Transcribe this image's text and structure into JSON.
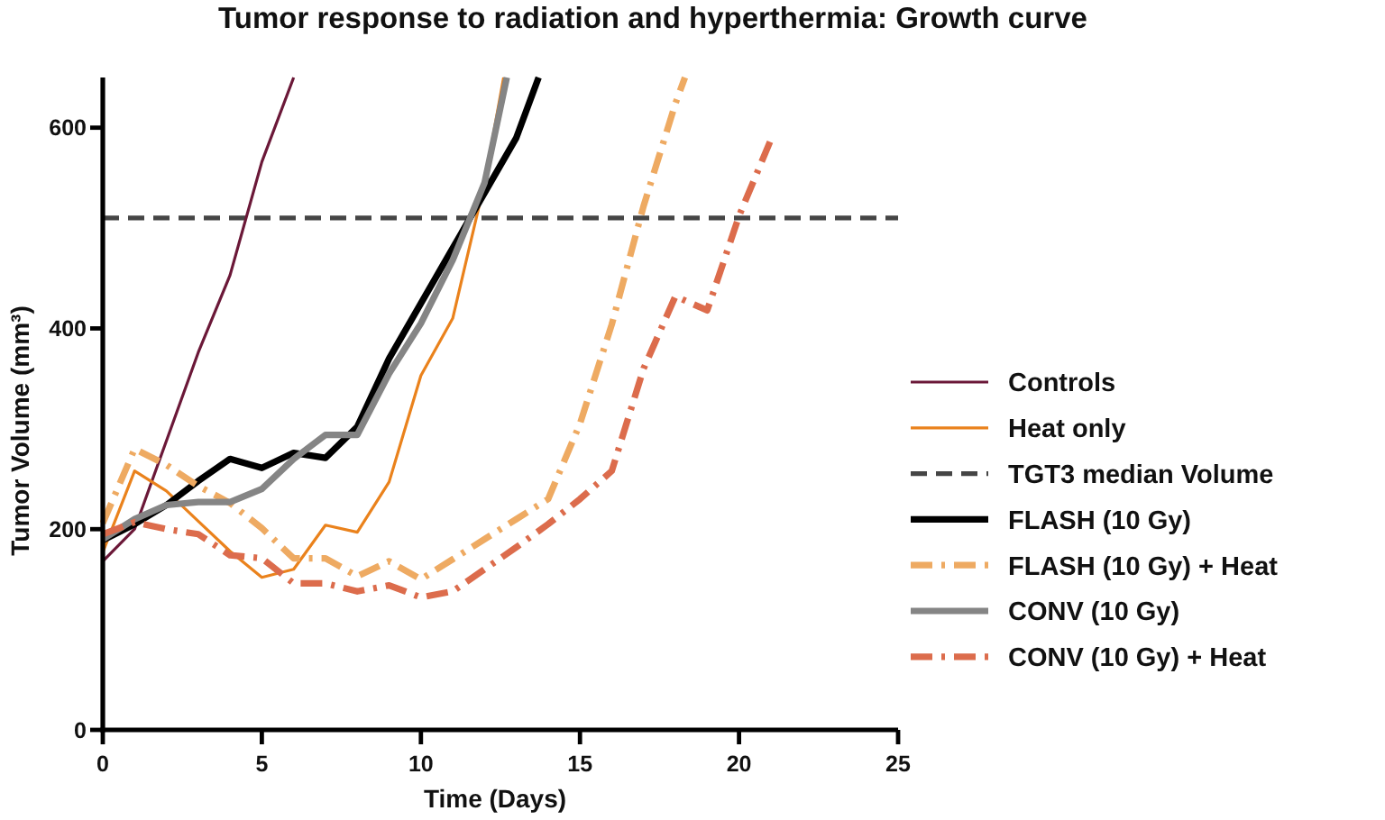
{
  "chart_data": {
    "type": "line",
    "title": "Tumor response to radiation and hyperthermia: Growth curve",
    "xlabel": "Time (Days)",
    "ylabel": "Tumor Volume (mm³)",
    "xlim": [
      0,
      25
    ],
    "xticks": [
      0,
      5,
      10,
      15,
      20,
      25
    ],
    "ylim": [
      0,
      650
    ],
    "yticks": [
      0,
      200,
      400,
      600
    ],
    "legend": "right",
    "series": [
      {
        "name": "Controls",
        "color": "#6b1838",
        "line_style": "solid",
        "x": [
          0,
          1,
          2,
          3,
          4,
          5,
          6
        ],
        "values": [
          168,
          200,
          288,
          376,
          453,
          566,
          650
        ]
      },
      {
        "name": "Heat only",
        "color": "#ea821c",
        "line_style": "solid",
        "x": [
          0,
          1,
          2,
          3,
          4,
          5,
          6,
          7,
          8,
          9,
          10,
          11,
          12,
          12.6
        ],
        "values": [
          177,
          258,
          238,
          208,
          178,
          152,
          160,
          204,
          197,
          247,
          353,
          410,
          545,
          650
        ]
      },
      {
        "name": "FLASH (10 Gy)",
        "color": "#000000",
        "line_style": "solid",
        "x": [
          0,
          1,
          2,
          3,
          4,
          5,
          6,
          7,
          8,
          9,
          10,
          11,
          12,
          13,
          13.7
        ],
        "values": [
          189,
          205,
          224,
          248,
          270,
          261,
          276,
          271,
          302,
          370,
          425,
          480,
          535,
          590,
          650
        ]
      },
      {
        "name": "FLASH (10 Gy) + Heat",
        "color": "#eeaa62",
        "line_style": "dashdot",
        "x": [
          0,
          1,
          2,
          3,
          4,
          5,
          6,
          7,
          8,
          9,
          10,
          11,
          12,
          13,
          14,
          15,
          16,
          17,
          18,
          18.3
        ],
        "values": [
          206,
          280,
          264,
          243,
          226,
          201,
          171,
          171,
          153,
          168,
          150,
          170,
          190,
          210,
          230,
          305,
          404,
          522,
          624,
          650
        ]
      },
      {
        "name": "CONV (10 Gy)",
        "color": "#858585",
        "line_style": "solid",
        "x": [
          0,
          1,
          2,
          3,
          4,
          5,
          6,
          7,
          8,
          9,
          10,
          11,
          12,
          12.7
        ],
        "values": [
          190,
          210,
          224,
          227,
          227,
          240,
          270,
          294,
          294,
          355,
          405,
          468,
          545,
          650
        ]
      },
      {
        "name": "CONV (10 Gy) + Heat",
        "color": "#dc6c4c",
        "line_style": "dashdot",
        "x": [
          0,
          1,
          2,
          3,
          4,
          5,
          6,
          7,
          8,
          9,
          10,
          11,
          12,
          13,
          14,
          15,
          16,
          17,
          18,
          19,
          20,
          21
        ],
        "values": [
          195,
          207,
          200,
          195,
          174,
          171,
          146,
          146,
          138,
          144,
          132,
          138,
          160,
          182,
          205,
          230,
          258,
          360,
          432,
          418,
          512,
          588
        ]
      }
    ],
    "ref_lines": [
      {
        "axis": "y",
        "value": 510,
        "label": "TGT3 median Volume",
        "color": "#454545",
        "line_style": "dashed"
      }
    ]
  }
}
